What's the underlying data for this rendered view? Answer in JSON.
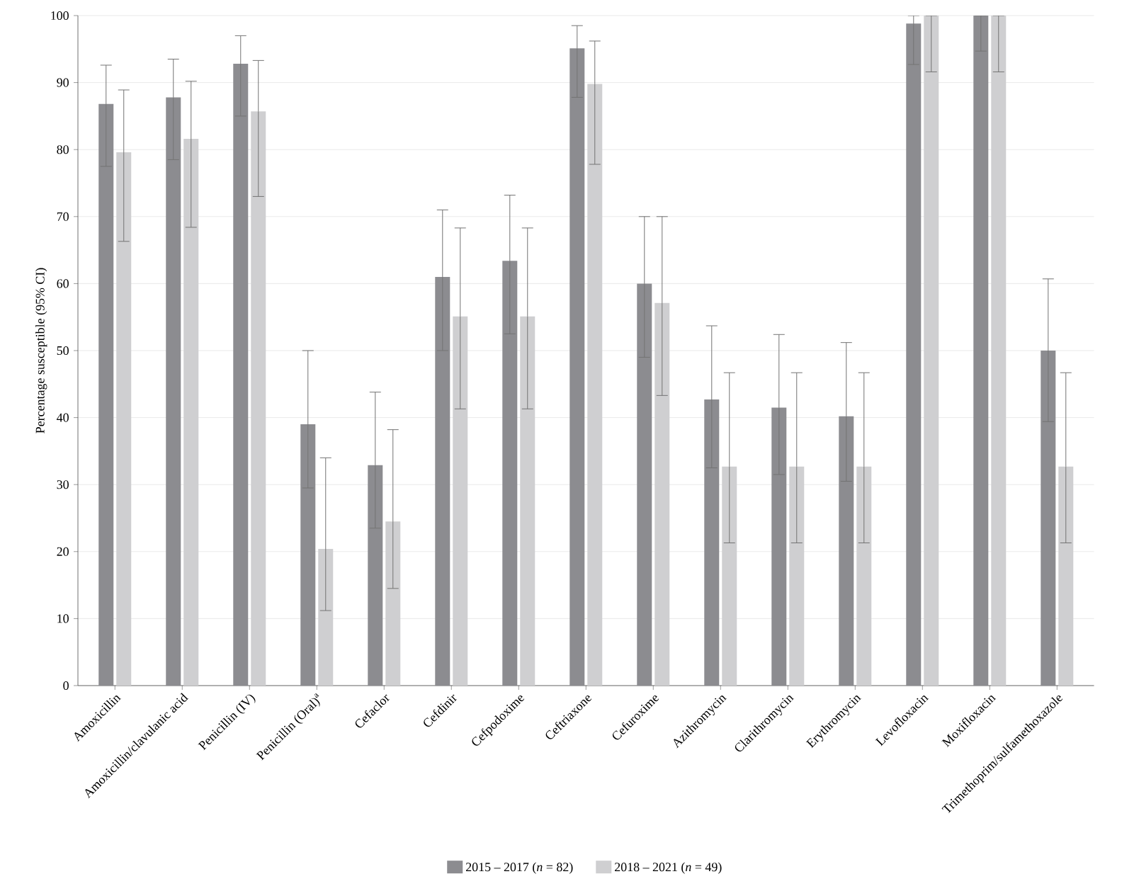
{
  "chart_data": {
    "type": "bar",
    "ylabel": "Percentage susceptible (95% CI)",
    "categories": [
      "Amoxicillin",
      "Amoxicillin/clavulanic acid",
      "Penicillin (IV)",
      "Penicillin (Oral)$^{a}$",
      "Cefaclor",
      "Cefdinir",
      "Cefpodoxime",
      "Ceftriaxone",
      "Cefuroxime",
      "Azithromycin",
      "Clarithromycin",
      "Erythromycin",
      "Levofloxacin",
      "Moxifloxacin",
      "Trimethoprim/sulfamethoxazole"
    ],
    "series": [
      {
        "name": "2015 – 2017 (*n* = 82)",
        "color": "#8c8c90",
        "values": [
          86.8,
          87.8,
          92.8,
          39,
          32.9,
          61,
          63.4,
          95.1,
          60,
          42.7,
          41.5,
          40.2,
          98.8,
          100,
          50
        ],
        "errors": [
          [
            77.5,
            92.6
          ],
          [
            78.5,
            93.5
          ],
          [
            85,
            97
          ],
          [
            29.5,
            50
          ],
          [
            23.5,
            43.8
          ],
          [
            50,
            71
          ],
          [
            52.5,
            73.2
          ],
          [
            87.8,
            98.5
          ],
          [
            49,
            70
          ],
          [
            32.5,
            53.7
          ],
          [
            31.5,
            52.4
          ],
          [
            30.5,
            51.2
          ],
          [
            92.7,
            100
          ],
          [
            94.7,
            100
          ],
          [
            39.4,
            60.7
          ]
        ]
      },
      {
        "name": "2018 – 2021 (*n* = 49)",
        "color": "#cfcfd1",
        "values": [
          79.6,
          81.6,
          85.7,
          20.4,
          24.5,
          55.1,
          55.1,
          89.8,
          57.1,
          32.7,
          32.7,
          32.7,
          100,
          100,
          32.7
        ],
        "errors": [
          [
            66.3,
            88.9
          ],
          [
            68.4,
            90.2
          ],
          [
            73,
            93.3
          ],
          [
            11.2,
            34
          ],
          [
            14.5,
            38.2
          ],
          [
            41.3,
            68.3
          ],
          [
            41.3,
            68.3
          ],
          [
            77.8,
            96.2
          ],
          [
            43.3,
            70
          ],
          [
            21.3,
            46.7
          ],
          [
            21.3,
            46.7
          ],
          [
            21.3,
            46.7
          ],
          [
            91.6,
            100
          ],
          [
            91.6,
            100
          ],
          [
            21.3,
            46.7
          ]
        ]
      }
    ],
    "ylim": [
      0,
      100
    ],
    "yticks": [
      0,
      10,
      20,
      30,
      40,
      50,
      60,
      70,
      80,
      90,
      100
    ],
    "grid": "y",
    "legend": "bottom"
  }
}
